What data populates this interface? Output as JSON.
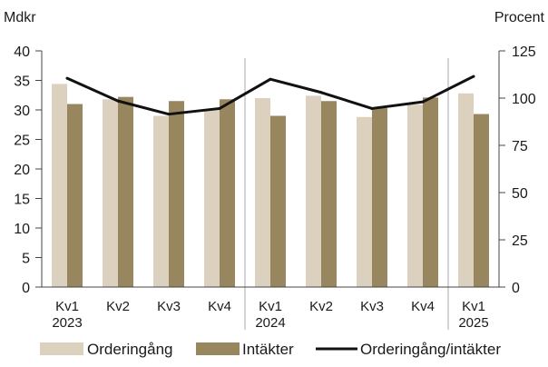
{
  "chart_data": {
    "type": "bar",
    "categories": [
      {
        "line1": "Kv1",
        "line2": "2023"
      },
      {
        "line1": "Kv2",
        "line2": ""
      },
      {
        "line1": "Kv3",
        "line2": ""
      },
      {
        "line1": "Kv4",
        "line2": ""
      },
      {
        "line1": "Kv1",
        "line2": "2024"
      },
      {
        "line1": "Kv2",
        "line2": ""
      },
      {
        "line1": "Kv3",
        "line2": ""
      },
      {
        "line1": "Kv4",
        "line2": ""
      },
      {
        "line1": "Kv1",
        "line2": "2025"
      }
    ],
    "series": [
      {
        "name": "Orderingång",
        "kind": "bar",
        "axis": "left",
        "color": "#dcd1bf",
        "values": [
          34.4,
          31.8,
          29.0,
          30.0,
          32.0,
          32.4,
          28.8,
          30.9,
          32.8
        ]
      },
      {
        "name": "Intäkter",
        "kind": "bar",
        "axis": "left",
        "color": "#98865f",
        "values": [
          31.0,
          32.2,
          31.5,
          31.8,
          29.0,
          31.5,
          30.3,
          32.1,
          29.3
        ]
      },
      {
        "name": "Orderingång/intäkter",
        "kind": "line",
        "axis": "right",
        "color": "#111111",
        "values": [
          110.5,
          98.5,
          91.5,
          94.5,
          110.0,
          103.0,
          94.5,
          98.0,
          111.5
        ]
      }
    ],
    "y_left": {
      "label": "Mdkr",
      "min": 0,
      "max": 40,
      "ticks": [
        0,
        5,
        10,
        15,
        20,
        25,
        30,
        35,
        40
      ]
    },
    "y_right": {
      "label": "Procent",
      "min": 0,
      "max": 125,
      "ticks": [
        0,
        25,
        50,
        75,
        100,
        125
      ]
    },
    "year_separators_after_category": [
      3,
      7
    ],
    "grid": false,
    "legend_position": "bottom"
  }
}
